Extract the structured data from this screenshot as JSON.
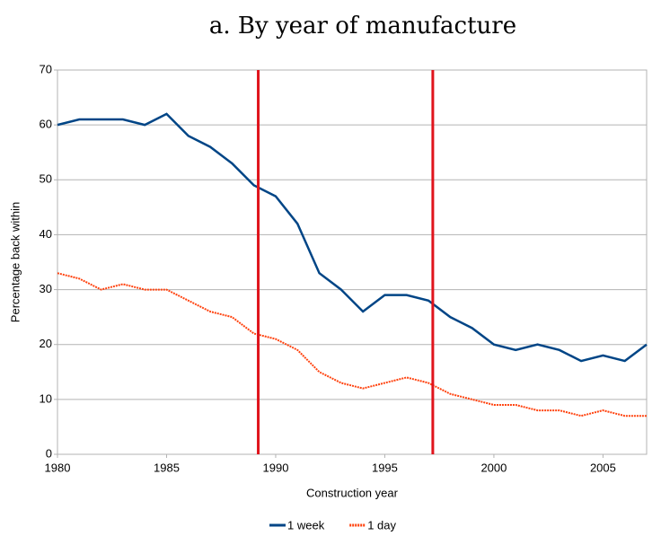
{
  "chart_data": {
    "type": "line",
    "title": "a. By year of manufacture",
    "x_label": "Construction year",
    "y_label": "Percentage back within",
    "x": [
      1980,
      1981,
      1982,
      1983,
      1984,
      1985,
      1986,
      1987,
      1988,
      1989,
      1990,
      1991,
      1992,
      1993,
      1994,
      1995,
      1996,
      1997,
      1998,
      1999,
      2000,
      2001,
      2002,
      2003,
      2004,
      2005,
      2006,
      2007
    ],
    "series": [
      {
        "name": "1 week",
        "color": "#004586",
        "dashed": false,
        "values": [
          60,
          61,
          61,
          61,
          60,
          62,
          58,
          56,
          53,
          49,
          47,
          42,
          33,
          30,
          26,
          29,
          29,
          28,
          25,
          23,
          20,
          19,
          20,
          19,
          17,
          18,
          17,
          20
        ]
      },
      {
        "name": "1 day",
        "color": "#ff420e",
        "dashed": true,
        "values": [
          33,
          32,
          30,
          31,
          30,
          30,
          28,
          26,
          25,
          22,
          21,
          19,
          15,
          13,
          12,
          13,
          14,
          13,
          11,
          10,
          9,
          9,
          8,
          8,
          7,
          8,
          7,
          7
        ]
      }
    ],
    "reference_lines": [
      1989.2,
      1997.2
    ],
    "reference_color": "#e0141c",
    "xlim": [
      1980,
      2007
    ],
    "xticks": [
      1980,
      1985,
      1990,
      1995,
      2000,
      2005
    ],
    "ylim": [
      0,
      70
    ],
    "yticks": [
      0,
      10,
      20,
      30,
      40,
      50,
      60,
      70
    ],
    "grid": true,
    "legend": "bottom"
  }
}
